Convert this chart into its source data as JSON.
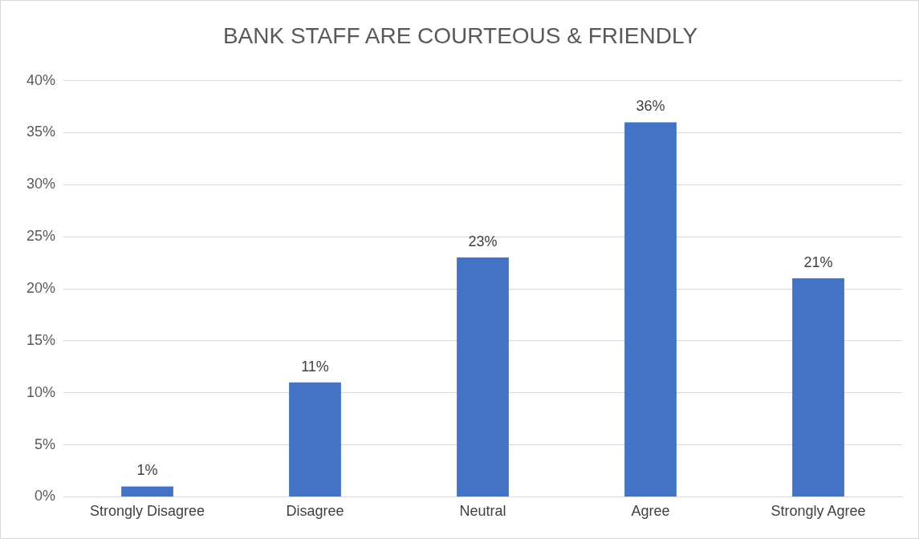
{
  "chart_data": {
    "type": "bar",
    "title": "BANK STAFF ARE COURTEOUS & FRIENDLY",
    "categories": [
      "Strongly Disagree",
      "Disagree",
      "Neutral",
      "Agree",
      "Strongly Agree"
    ],
    "values": [
      1,
      11,
      23,
      36,
      21
    ],
    "value_labels": [
      "1%",
      "11%",
      "23%",
      "36%",
      "21%"
    ],
    "color": "#4472c4",
    "ylim": [
      0,
      40
    ],
    "yticks": [
      {
        "value": 0,
        "label": "0%"
      },
      {
        "value": 5,
        "label": "5%"
      },
      {
        "value": 10,
        "label": "10%"
      },
      {
        "value": 15,
        "label": "15%"
      },
      {
        "value": 20,
        "label": "20%"
      },
      {
        "value": 25,
        "label": "25%"
      },
      {
        "value": 30,
        "label": "30%"
      },
      {
        "value": 35,
        "label": "35%"
      },
      {
        "value": 40,
        "label": "40%"
      }
    ],
    "grid": "y",
    "legend": false
  }
}
